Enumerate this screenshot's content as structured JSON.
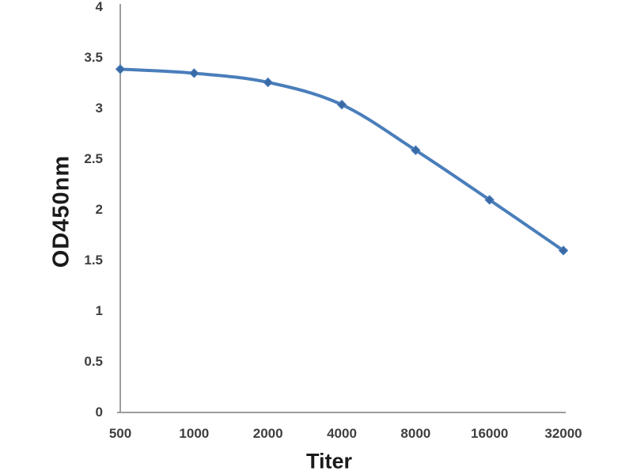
{
  "chart_data": {
    "type": "line",
    "categories": [
      "500",
      "1000",
      "2000",
      "4000",
      "8000",
      "16000",
      "32000"
    ],
    "series": [
      {
        "name": "OD450nm",
        "values": [
          3.38,
          3.34,
          3.25,
          3.03,
          2.58,
          2.09,
          1.59
        ]
      }
    ],
    "title": "",
    "xlabel": "Titer",
    "ylabel": "OD450nm",
    "ylim": [
      0,
      4
    ],
    "ytick_step": 0.5,
    "ytick_labels": [
      "0",
      "0.5",
      "1",
      "1.5",
      "2",
      "2.5",
      "3",
      "3.5",
      "4"
    ],
    "grid": "off",
    "legend": "none",
    "marker": "diamond",
    "colors": {
      "line": "#4a7ebb",
      "marker_fill": "#3a6aa5",
      "axis_line": "#9d9d9d",
      "tick_text": "#3f3f3f",
      "axis_title_text": "#1a1a1a"
    }
  }
}
